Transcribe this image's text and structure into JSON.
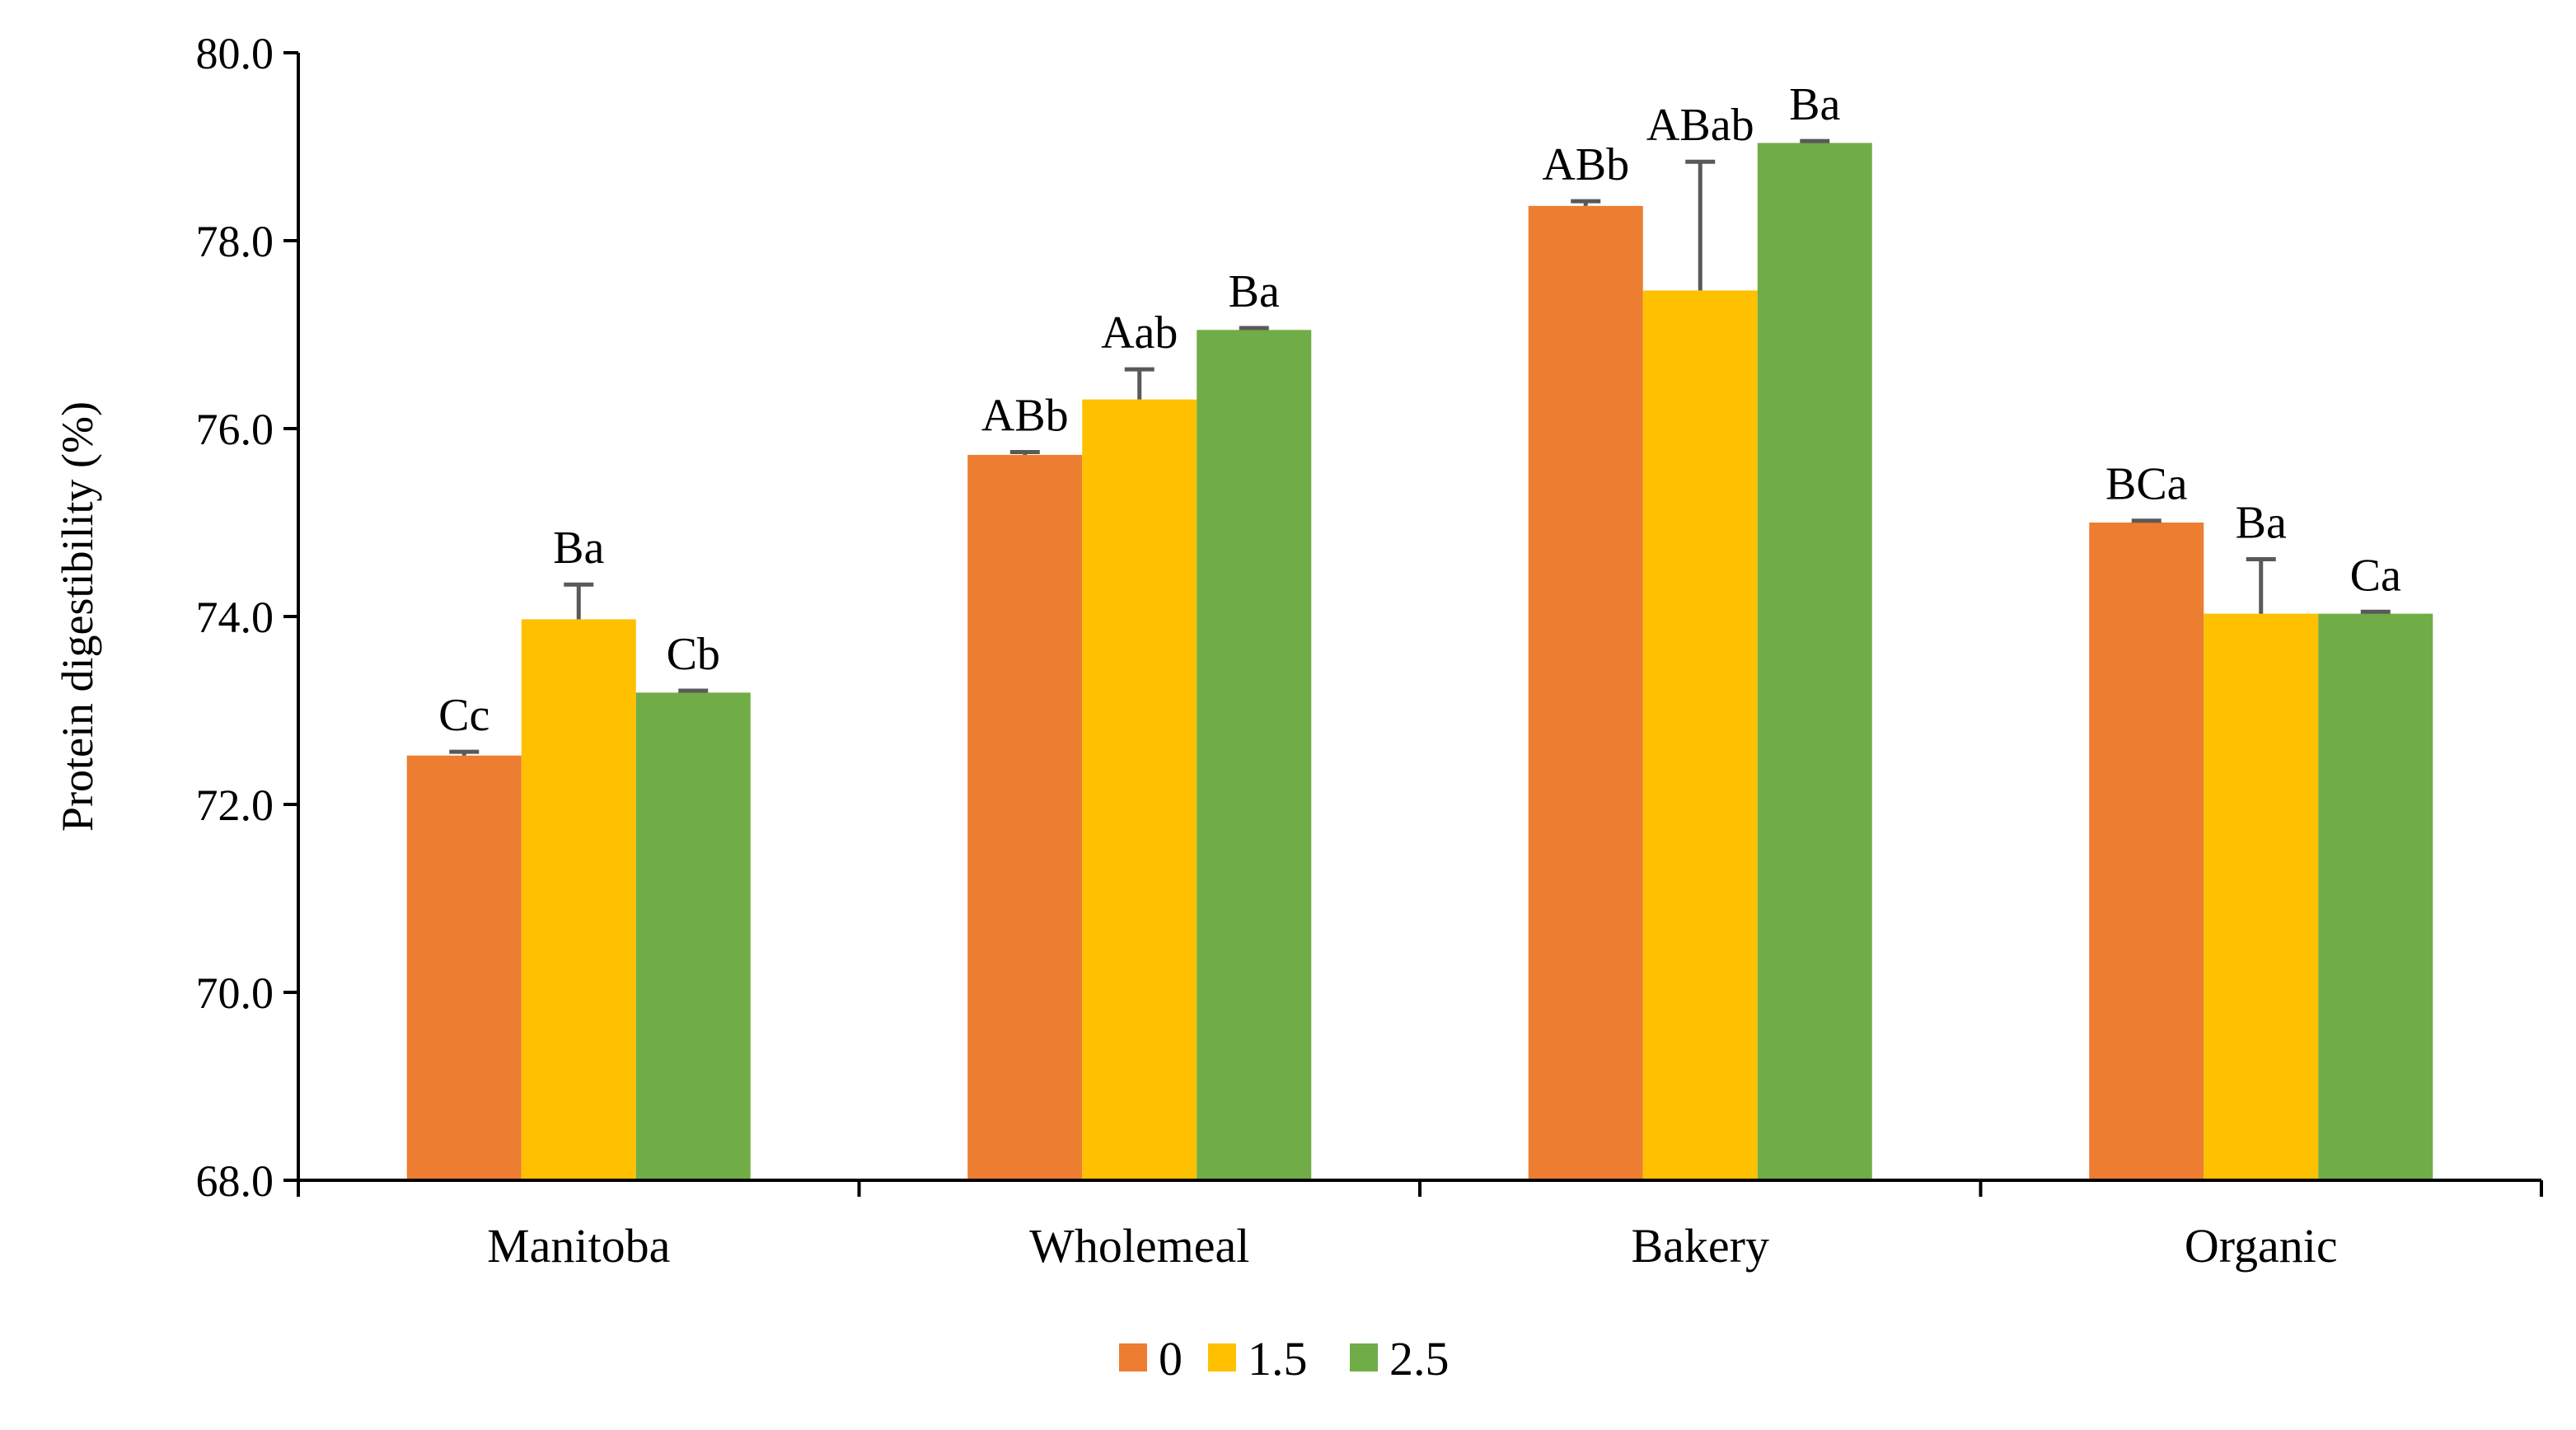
{
  "chart_data": {
    "type": "bar",
    "title": "",
    "xlabel": "",
    "ylabel": "Protein digestibility (%)",
    "ylim": [
      68.0,
      80.0
    ],
    "yticks": [
      68.0,
      70.0,
      72.0,
      74.0,
      76.0,
      78.0,
      80.0
    ],
    "ytick_labels": [
      "68.0",
      "70.0",
      "72.0",
      "74.0",
      "76.0",
      "78.0",
      "80.0"
    ],
    "categories": [
      "Manitoba",
      "Wholemeal",
      "Bakery",
      "Organic"
    ],
    "grid": false,
    "legend_position": "bottom-center",
    "series": [
      {
        "name": "0",
        "color": "#ED7D31",
        "values": [
          72.52,
          75.72,
          78.37,
          75.0
        ],
        "errors": [
          0.04,
          0.03,
          0.05,
          0.02
        ],
        "labels": [
          "Cc",
          "ABb",
          "ABb",
          "BCa"
        ]
      },
      {
        "name": "1.5",
        "color": "#FFC000",
        "values": [
          73.97,
          76.31,
          77.47,
          74.03
        ],
        "errors": [
          0.37,
          0.32,
          1.37,
          0.58
        ],
        "labels": [
          "Ba",
          "Aab",
          "ABab",
          "Ba"
        ]
      },
      {
        "name": "2.5",
        "color": "#70AD47",
        "values": [
          73.19,
          77.05,
          79.04,
          74.03
        ],
        "errors": [
          0.02,
          0.02,
          0.02,
          0.02
        ],
        "labels": [
          "Cb",
          "Ba",
          "Ba",
          "Ca"
        ]
      }
    ]
  }
}
